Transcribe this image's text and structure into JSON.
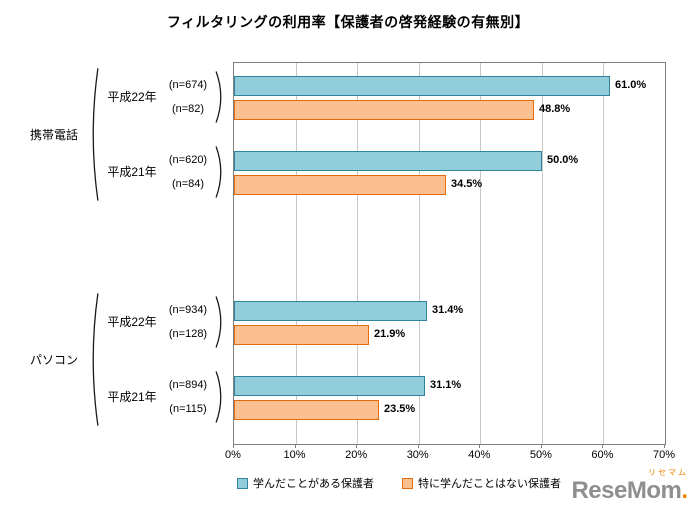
{
  "title": "フィルタリングの利用率【保護者の啓発経験の有無別】",
  "chart_data": {
    "type": "bar",
    "orientation": "horizontal",
    "title": "フィルタリングの利用率【保護者の啓発経験の有無別】",
    "x_axis": {
      "min": 0,
      "max": 70,
      "ticks": [
        "0%",
        "10%",
        "20%",
        "30%",
        "40%",
        "50%",
        "60%",
        "70%"
      ],
      "grid": true
    },
    "legend_position": "bottom",
    "series": [
      {
        "name": "学んだことがある保護者",
        "color": "#92CDDC",
        "border": "#31859B"
      },
      {
        "name": "特に学んだことはない保護者",
        "color": "#FAC090",
        "border": "#E46C0A"
      }
    ],
    "groups": [
      {
        "label": "携帯電話",
        "years": [
          {
            "label": "平成22年",
            "rows": [
              {
                "n": "(n=674)",
                "series": 0,
                "value": 61.0,
                "value_label": "61.0%"
              },
              {
                "n": "(n=82)",
                "series": 1,
                "value": 48.8,
                "value_label": "48.8%"
              }
            ]
          },
          {
            "label": "平成21年",
            "rows": [
              {
                "n": "(n=620)",
                "series": 0,
                "value": 50.0,
                "value_label": "50.0%"
              },
              {
                "n": "(n=84)",
                "series": 1,
                "value": 34.5,
                "value_label": "34.5%"
              }
            ]
          }
        ]
      },
      {
        "label": "パソコン",
        "years": [
          {
            "label": "平成22年",
            "rows": [
              {
                "n": "(n=934)",
                "series": 0,
                "value": 31.4,
                "value_label": "31.4%"
              },
              {
                "n": "(n=128)",
                "series": 1,
                "value": 21.9,
                "value_label": "21.9%"
              }
            ]
          },
          {
            "label": "平成21年",
            "rows": [
              {
                "n": "(n=894)",
                "series": 0,
                "value": 31.1,
                "value_label": "31.1%"
              },
              {
                "n": "(n=115)",
                "series": 1,
                "value": 23.5,
                "value_label": "23.5%"
              }
            ]
          }
        ]
      }
    ]
  },
  "legend": [
    {
      "label": "学んだことがある保護者",
      "color": "#92CDDC",
      "border": "#31859B"
    },
    {
      "label": "特に学んだことはない保護者",
      "color": "#FAC090",
      "border": "#E46C0A"
    }
  ],
  "watermark": {
    "ruby": "リセマム",
    "text": "ReseMom",
    "dot": "."
  }
}
